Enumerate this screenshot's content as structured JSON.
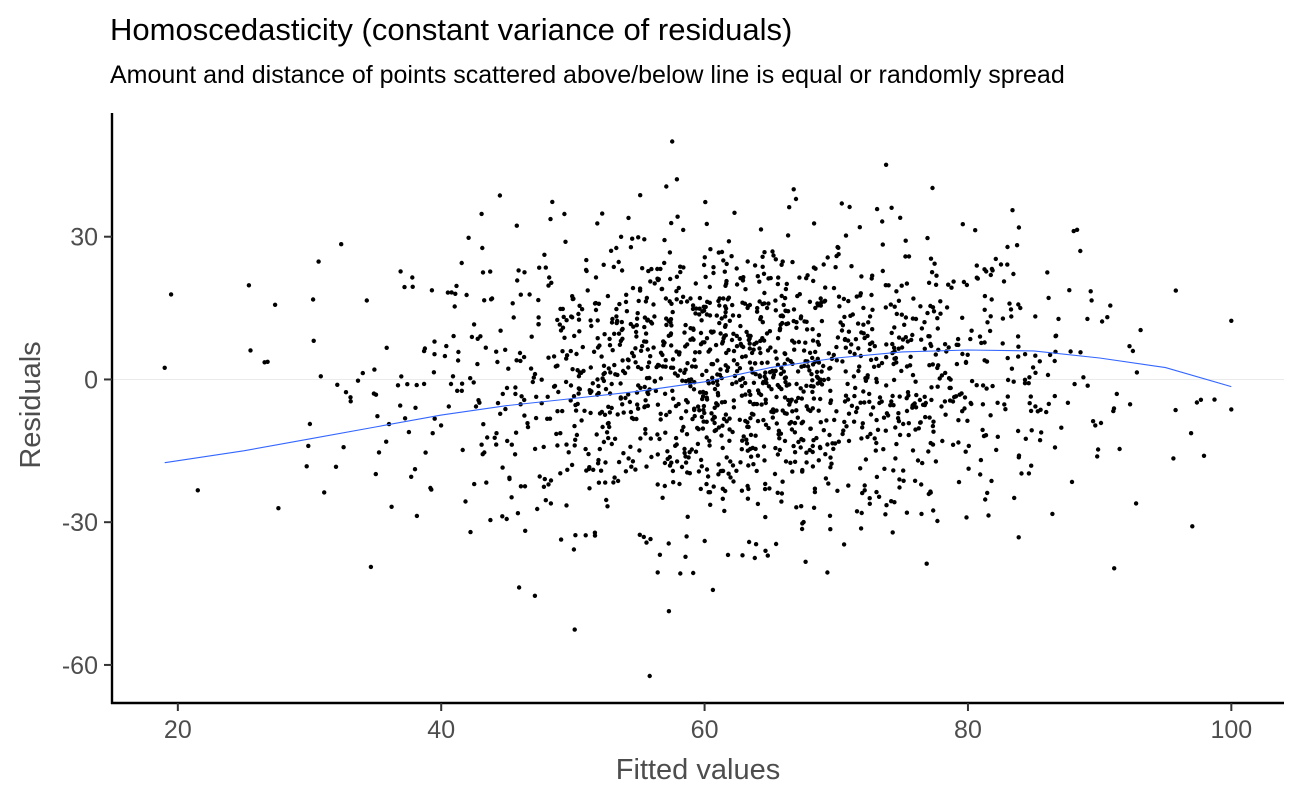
{
  "chart_data": {
    "type": "scatter",
    "title": "Homoscedasticity (constant variance of residuals)",
    "subtitle": "Amount and distance of points scattered above/below line is equal or randomly spread",
    "xlabel": "Fitted values",
    "ylabel": "Residuals",
    "xlim": [
      15,
      104
    ],
    "ylim": [
      -68,
      56
    ],
    "x_ticks": [
      20,
      40,
      60,
      80,
      100
    ],
    "x_tick_labels": [
      "20",
      "40",
      "60",
      "80",
      "100"
    ],
    "y_ticks": [
      -60,
      -30,
      0,
      30
    ],
    "y_tick_labels": [
      "-60",
      "-30",
      "0",
      "30"
    ],
    "reference_line": {
      "y": 0,
      "color": "#ebebeb"
    },
    "smooth_line": {
      "color": "#3366FF",
      "x": [
        19,
        25,
        30,
        35,
        40,
        45,
        50,
        55,
        60,
        65,
        70,
        75,
        80,
        85,
        90,
        95,
        100
      ],
      "y": [
        -17.5,
        -15,
        -12.5,
        -10,
        -7.5,
        -5.5,
        -4,
        -2.5,
        -0.5,
        2.5,
        4.5,
        5.8,
        6.2,
        6,
        4.5,
        2.5,
        -1.5
      ]
    },
    "points": {
      "count": 1700,
      "color": "#000000",
      "x_range": [
        19,
        100
      ],
      "y_range": [
        -63,
        50
      ]
    },
    "grid": false,
    "legend": "none"
  }
}
